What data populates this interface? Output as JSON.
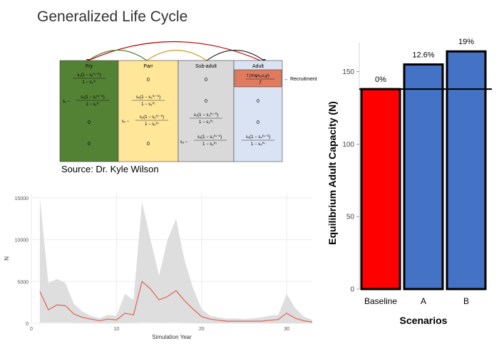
{
  "slide": {
    "title": "Generalized Life Cycle",
    "source": "Source: Dr. Kyle Wilson"
  },
  "matrix": {
    "headers": [
      "Fry",
      "Parr",
      "Sub-adult",
      "Adult"
    ],
    "colors": {
      "fry": "#548235",
      "parr": "#FFE699",
      "subadult": "#D9D9D9",
      "adult": "#DAE3F3",
      "recruit": "#E07B60"
    },
    "recruitment_label": "← Recruitment",
    "recruitment_formula": "f (πτφsₑs₀γ / T)",
    "cells": [
      [
        "s₁(1 − s₁^(n₁−1)) / (1 − s₁^n₁)",
        "0",
        "0",
        "f(πτφsₑs₀γ/T)"
      ],
      [
        "s₁ − s₁(1 − s₁^(n₁−1)) / (1 − s₁^n₁)",
        "s₂(1 − s₂^(n₂−1)) / (1 − s₂^n₂)",
        "0",
        "0"
      ],
      [
        "0",
        "s₂ − s₂(1 − s₂^(n₂−1)) / (1 − s₂^n₂)",
        "s₃(1 − s₃^(n₃−1)) / (1 − s₃^n₃)",
        "0"
      ],
      [
        "0",
        "0",
        "s₃ − s₃(1 − s₃^(n₃−1)) / (1 − s₃^n₃)",
        "s₄(1 − s₄^(n₄−1)) / (1 − s₄^n₄)"
      ]
    ]
  },
  "chart_data": [
    {
      "type": "area",
      "title": "",
      "xlabel": "Simulation Year",
      "ylabel": "N",
      "xlim": [
        0,
        33
      ],
      "ylim": [
        0,
        15500
      ],
      "x_ticks": [
        0,
        10,
        20,
        30
      ],
      "y_ticks": [
        0,
        5000,
        10000,
        15000
      ],
      "x_tick_labels": [
        "0",
        "10",
        "20",
        "30"
      ],
      "y_tick_labels": [
        "0",
        "5000",
        "10000",
        "15000"
      ],
      "grid": true,
      "colors": {
        "line": "#E06A5F",
        "band": "#D8D8D8",
        "panel": "#FFFFFF",
        "grid": "#EBEBEB"
      },
      "x": [
        1,
        2,
        3,
        4,
        5,
        6,
        7,
        8,
        9,
        10,
        11,
        12,
        13,
        14,
        15,
        16,
        17,
        18,
        19,
        20,
        21,
        22,
        23,
        24,
        25,
        26,
        27,
        28,
        29,
        30,
        31,
        32,
        33
      ],
      "mean": [
        3800,
        1600,
        2200,
        2100,
        1100,
        700,
        500,
        300,
        500,
        400,
        1200,
        1000,
        5000,
        4100,
        2800,
        3200,
        3900,
        2700,
        1700,
        800,
        500,
        350,
        250,
        250,
        250,
        250,
        250,
        350,
        450,
        1200,
        600,
        300,
        150
      ],
      "upper": [
        15000,
        4800,
        5300,
        4800,
        2300,
        1400,
        900,
        600,
        1000,
        900,
        3500,
        2800,
        14500,
        10000,
        5700,
        10000,
        12500,
        7500,
        4200,
        1700,
        900,
        700,
        550,
        600,
        500,
        600,
        700,
        900,
        1000,
        3500,
        1800,
        800,
        400
      ],
      "lower": [
        100,
        80,
        90,
        80,
        60,
        50,
        40,
        30,
        30,
        30,
        50,
        50,
        100,
        80,
        60,
        70,
        80,
        60,
        40,
        30,
        20,
        20,
        15,
        15,
        15,
        15,
        15,
        15,
        15,
        30,
        20,
        15,
        10
      ]
    },
    {
      "type": "bar",
      "title": "",
      "xlabel": "Scenarios",
      "ylabel": "Equilibrium Adult Capacity (N)",
      "categories": [
        "Baseline",
        "A",
        "B"
      ],
      "values": [
        138,
        155,
        164
      ],
      "labels": [
        "0%",
        "12.6%",
        "19%"
      ],
      "colors": [
        "#FF0000",
        "#4472C4",
        "#4472C4"
      ],
      "ylim": [
        0,
        170
      ],
      "y_ticks": [
        0,
        50,
        100,
        150
      ],
      "y_tick_labels": [
        "0",
        "50",
        "100",
        "150"
      ],
      "reference_line": 138,
      "grid": false
    }
  ]
}
